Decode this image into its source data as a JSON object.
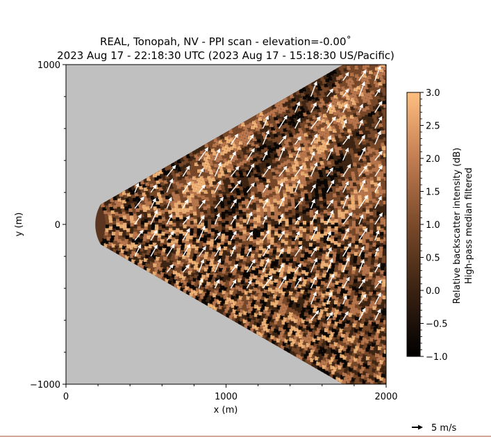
{
  "chart_data": {
    "type": "heatmap",
    "title": "REAL, Tonopah, NV - PPI scan - elevation=-0.00$^\\circ$",
    "title_display": "REAL, Tonopah, NV - PPI scan - elevation=-0.00˚",
    "subtitle": "2023 Aug 17 - 22:18:30 UTC (2023 Aug 17 - 15:18:30 US/Pacific)",
    "xlabel": "x (m)",
    "ylabel": "y (m)",
    "xlim": [
      0,
      2000
    ],
    "ylim": [
      -1000,
      1000
    ],
    "xticks": [
      "0",
      "1000",
      "2000"
    ],
    "yticks": [
      "−1000",
      "0",
      "1000"
    ],
    "xtick_values": [
      0,
      1000,
      2000
    ],
    "ytick_values": [
      -1000,
      0,
      1000
    ],
    "colorbar": {
      "label_line1": "Relative backscatter intensity (dB)",
      "label_line2": "High-pass median filtered",
      "range": [
        -1.0,
        3.0
      ],
      "ticks": [
        "3.0",
        "2.5",
        "2.0",
        "1.5",
        "1.0",
        "0.5",
        "0.0",
        "−0.5",
        "−1.0"
      ],
      "tick_values": [
        3.0,
        2.5,
        2.0,
        1.5,
        1.0,
        0.5,
        0.0,
        -0.5,
        -1.0
      ],
      "colors": [
        "#000000",
        "#3a2212",
        "#7a4a2a",
        "#c27d52",
        "#ffbf80"
      ]
    },
    "scan_sector": {
      "range_min_m": 250,
      "angle_min_deg": -30,
      "angle_max_deg": 30
    },
    "quiver_key": {
      "label": "5 m/s",
      "speed_ms": 5
    },
    "wind_vectors_description": "southwest-to-northeast flow, mostly ~3-5 m/s",
    "background_color": "#c0c0c0"
  }
}
